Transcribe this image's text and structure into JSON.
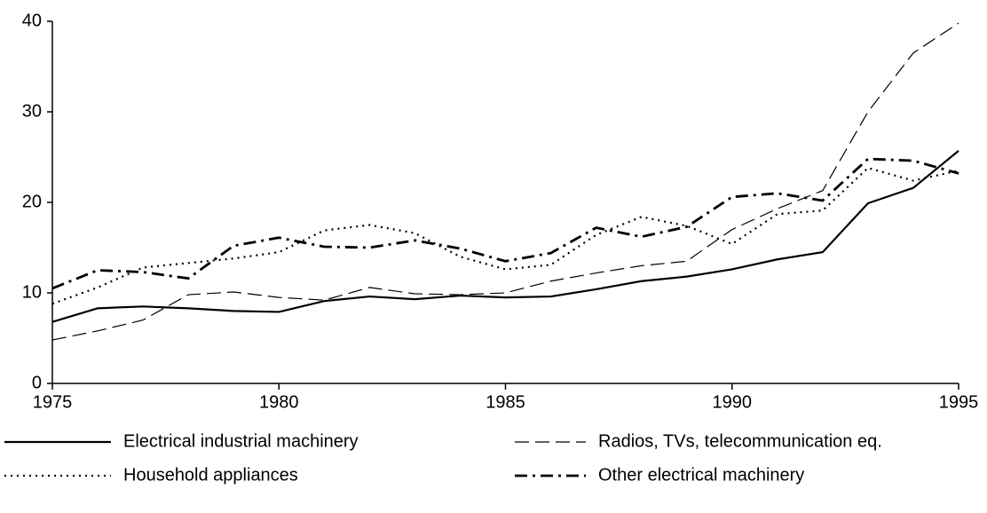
{
  "chart_data": {
    "type": "line",
    "x": [
      1975,
      1976,
      1977,
      1978,
      1979,
      1980,
      1981,
      1982,
      1983,
      1984,
      1985,
      1986,
      1987,
      1988,
      1989,
      1990,
      1991,
      1992,
      1993,
      1994,
      1995
    ],
    "series": [
      {
        "name": "Electrical industrial machinery",
        "color": "#000000",
        "dash": "solid",
        "values": [
          6.8,
          8.3,
          8.5,
          8.3,
          8.0,
          7.9,
          9.1,
          9.6,
          9.3,
          9.7,
          9.5,
          9.6,
          10.4,
          11.3,
          11.8,
          12.6,
          13.7,
          14.5,
          19.9,
          21.6,
          25.7
        ]
      },
      {
        "name": "Radios, TVs, telecommunication eq.",
        "color": "#000000",
        "dash": "dashed",
        "values": [
          4.8,
          5.8,
          7.0,
          9.8,
          10.1,
          9.5,
          9.2,
          10.6,
          9.9,
          9.8,
          10.0,
          11.3,
          12.2,
          13.0,
          13.5,
          17.0,
          19.3,
          21.3,
          30.0,
          36.5,
          39.8
        ]
      },
      {
        "name": "Household appliances",
        "color": "#000000",
        "dash": "dotted",
        "values": [
          8.8,
          10.6,
          12.8,
          13.3,
          13.8,
          14.5,
          16.9,
          17.5,
          16.6,
          14.0,
          12.6,
          13.1,
          16.4,
          18.4,
          17.4,
          15.4,
          18.7,
          19.1,
          23.8,
          22.4,
          23.5
        ]
      },
      {
        "name": "Other electrical machinery",
        "color": "#000000",
        "dash": "dashdot",
        "values": [
          10.5,
          12.5,
          12.3,
          11.6,
          15.2,
          16.1,
          15.1,
          15.0,
          15.8,
          14.9,
          13.5,
          14.4,
          17.2,
          16.2,
          17.3,
          20.6,
          21.0,
          20.2,
          24.8,
          24.6,
          23.2
        ]
      }
    ],
    "xlim": [
      1975,
      1995
    ],
    "xticks": [
      1975,
      1980,
      1985,
      1990,
      1995
    ],
    "ylim": [
      0,
      40
    ],
    "yticks": [
      0,
      10,
      20,
      30,
      40
    ],
    "legend": "bottom"
  }
}
